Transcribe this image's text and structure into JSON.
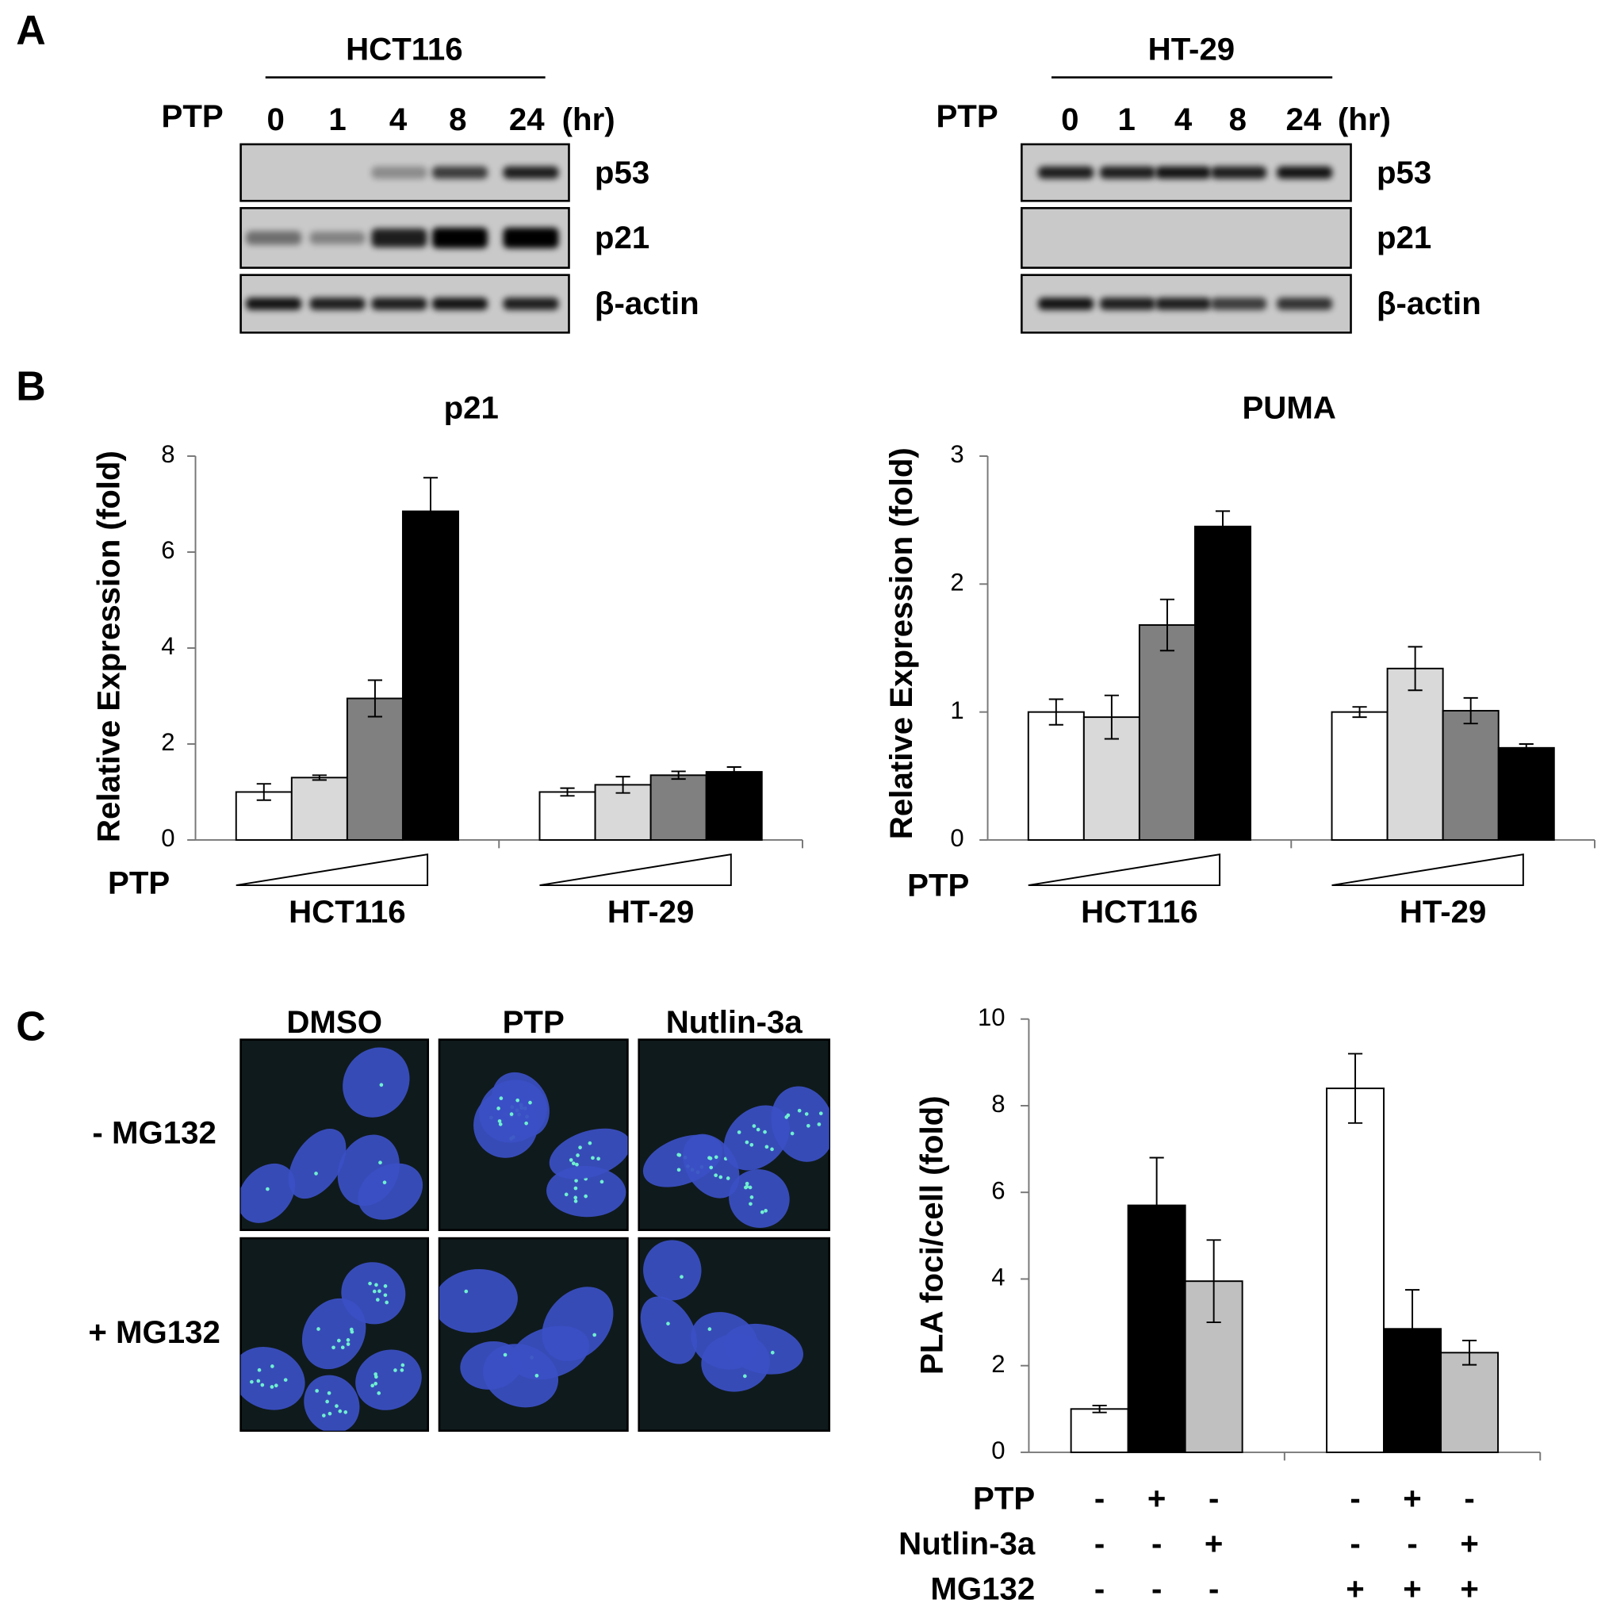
{
  "panels": {
    "a": "A",
    "b": "B",
    "c": "C"
  },
  "blots": [
    {
      "cell_line": "HCT116",
      "treatment": "PTP",
      "timepoints": [
        "0",
        "1",
        "4",
        "8",
        "24"
      ],
      "unit": "(hr)",
      "proteins": [
        "p53",
        "p21",
        "β-actin"
      ]
    },
    {
      "cell_line": "HT-29",
      "treatment": "PTP",
      "timepoints": [
        "0",
        "1",
        "4",
        "8",
        "24"
      ],
      "unit": "(hr)",
      "proteins": [
        "p53",
        "p21",
        "β-actin"
      ]
    }
  ],
  "microscopy": {
    "columns": [
      "DMSO",
      "PTP",
      "Nutlin-3a"
    ],
    "rows": [
      "- MG132",
      "+ MG132"
    ]
  },
  "chart_data": [
    {
      "type": "bar",
      "title": "p21",
      "ylabel": "Relative Expression (fold)",
      "annotation": "PTP",
      "categories": [
        "HCT116",
        "HT-29"
      ],
      "series": [
        {
          "color": "#ffffff",
          "values": [
            1.0,
            1.0
          ],
          "errors": [
            0.17,
            0.08
          ]
        },
        {
          "color": "#d9d9d9",
          "values": [
            1.3,
            1.15
          ],
          "errors": [
            0.05,
            0.17
          ]
        },
        {
          "color": "#808080",
          "values": [
            2.95,
            1.35
          ],
          "errors": [
            0.38,
            0.08
          ]
        },
        {
          "color": "#000000",
          "values": [
            6.85,
            1.42
          ],
          "errors": [
            0.7,
            0.1
          ]
        }
      ],
      "ylim": [
        0,
        8
      ],
      "yticks": [
        0,
        2,
        4,
        6,
        8
      ]
    },
    {
      "type": "bar",
      "title": "PUMA",
      "ylabel": "Relative Expression (fold)",
      "annotation": "PTP",
      "categories": [
        "HCT116",
        "HT-29"
      ],
      "series": [
        {
          "color": "#ffffff",
          "values": [
            1.0,
            1.0
          ],
          "errors": [
            0.1,
            0.04
          ]
        },
        {
          "color": "#d9d9d9",
          "values": [
            0.96,
            1.34
          ],
          "errors": [
            0.17,
            0.17
          ]
        },
        {
          "color": "#808080",
          "values": [
            1.68,
            1.01
          ],
          "errors": [
            0.2,
            0.1
          ]
        },
        {
          "color": "#000000",
          "values": [
            2.45,
            0.72
          ],
          "errors": [
            0.12,
            0.03
          ]
        }
      ],
      "ylim": [
        0,
        3
      ],
      "yticks": [
        0,
        1,
        2,
        3
      ]
    },
    {
      "type": "bar",
      "ylabel": "PLA foci/cell (fold)",
      "categories": [
        null,
        null
      ],
      "series": [
        {
          "color": "#ffffff",
          "values": [
            1.0,
            8.4
          ],
          "errors": [
            0.08,
            0.8
          ]
        },
        {
          "color": "#000000",
          "values": [
            5.7,
            2.85
          ],
          "errors": [
            1.1,
            0.9
          ]
        },
        {
          "color": "#c0c0c0",
          "values": [
            3.95,
            2.3
          ],
          "errors": [
            0.95,
            0.28
          ]
        }
      ],
      "conditions": [
        {
          "label": "PTP",
          "signs": [
            "-",
            "+",
            "-",
            "-",
            "+",
            "-"
          ]
        },
        {
          "label": "Nutlin-3a",
          "signs": [
            "-",
            "-",
            "+",
            "-",
            "-",
            "+"
          ]
        },
        {
          "label": "MG132",
          "signs": [
            "-",
            "-",
            "-",
            "+",
            "+",
            "+"
          ]
        }
      ],
      "ylim": [
        0,
        10
      ],
      "yticks": [
        0,
        2,
        4,
        6,
        8,
        10
      ]
    }
  ]
}
